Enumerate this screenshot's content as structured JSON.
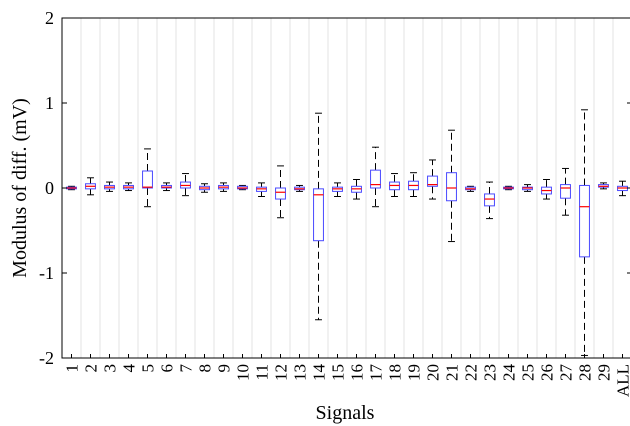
{
  "chart_data": {
    "type": "boxplot",
    "title": "",
    "xlabel": "Signals",
    "ylabel": "Modulus of diff. (mV)",
    "ylim": [
      -2,
      2
    ],
    "yticks": [
      -2,
      -1,
      0,
      1,
      2
    ],
    "grid": "vertical",
    "categories": [
      "1",
      "2",
      "3",
      "4",
      "5",
      "6",
      "7",
      "8",
      "9",
      "10",
      "11",
      "12",
      "13",
      "14",
      "15",
      "16",
      "17",
      "18",
      "19",
      "20",
      "21",
      "22",
      "23",
      "24",
      "25",
      "26",
      "27",
      "28",
      "29",
      "ALL"
    ],
    "boxes": [
      {
        "whisker_low": -0.02,
        "q1": -0.01,
        "median": 0.0,
        "q3": 0.01,
        "whisker_high": 0.02
      },
      {
        "whisker_low": -0.08,
        "q1": -0.01,
        "median": 0.02,
        "q3": 0.05,
        "whisker_high": 0.12
      },
      {
        "whisker_low": -0.04,
        "q1": -0.01,
        "median": 0.01,
        "q3": 0.03,
        "whisker_high": 0.07
      },
      {
        "whisker_low": -0.03,
        "q1": -0.01,
        "median": 0.01,
        "q3": 0.03,
        "whisker_high": 0.06
      },
      {
        "whisker_low": -0.22,
        "q1": 0.0,
        "median": 0.01,
        "q3": 0.2,
        "whisker_high": 0.46
      },
      {
        "whisker_low": -0.03,
        "q1": 0.0,
        "median": 0.01,
        "q3": 0.03,
        "whisker_high": 0.06
      },
      {
        "whisker_low": -0.09,
        "q1": 0.0,
        "median": 0.03,
        "q3": 0.07,
        "whisker_high": 0.17
      },
      {
        "whisker_low": -0.05,
        "q1": -0.02,
        "median": 0.0,
        "q3": 0.02,
        "whisker_high": 0.05
      },
      {
        "whisker_low": -0.04,
        "q1": -0.01,
        "median": 0.01,
        "q3": 0.03,
        "whisker_high": 0.06
      },
      {
        "whisker_low": -0.02,
        "q1": -0.01,
        "median": 0.0,
        "q3": 0.02,
        "whisker_high": 0.03
      },
      {
        "whisker_low": -0.1,
        "q1": -0.04,
        "median": -0.01,
        "q3": 0.01,
        "whisker_high": 0.06
      },
      {
        "whisker_low": -0.35,
        "q1": -0.13,
        "median": -0.05,
        "q3": 0.0,
        "whisker_high": 0.26
      },
      {
        "whisker_low": -0.04,
        "q1": -0.02,
        "median": -0.01,
        "q3": 0.01,
        "whisker_high": 0.03
      },
      {
        "whisker_low": -1.55,
        "q1": -0.62,
        "median": -0.08,
        "q3": -0.01,
        "whisker_high": 0.88
      },
      {
        "whisker_low": -0.1,
        "q1": -0.04,
        "median": -0.01,
        "q3": 0.01,
        "whisker_high": 0.06
      },
      {
        "whisker_low": -0.13,
        "q1": -0.05,
        "median": -0.01,
        "q3": 0.02,
        "whisker_high": 0.1
      },
      {
        "whisker_low": -0.22,
        "q1": 0.0,
        "median": 0.04,
        "q3": 0.21,
        "whisker_high": 0.48
      },
      {
        "whisker_low": -0.1,
        "q1": -0.02,
        "median": 0.03,
        "q3": 0.07,
        "whisker_high": 0.17
      },
      {
        "whisker_low": -0.1,
        "q1": -0.02,
        "median": 0.03,
        "q3": 0.08,
        "whisker_high": 0.18
      },
      {
        "whisker_low": -0.13,
        "q1": 0.02,
        "median": 0.04,
        "q3": 0.14,
        "whisker_high": 0.33
      },
      {
        "whisker_low": -0.63,
        "q1": -0.15,
        "median": 0.0,
        "q3": 0.18,
        "whisker_high": 0.68
      },
      {
        "whisker_low": -0.04,
        "q1": -0.02,
        "median": -0.01,
        "q3": 0.01,
        "whisker_high": 0.02
      },
      {
        "whisker_low": -0.36,
        "q1": -0.21,
        "median": -0.13,
        "q3": -0.07,
        "whisker_high": 0.07
      },
      {
        "whisker_low": -0.02,
        "q1": -0.01,
        "median": 0.0,
        "q3": 0.01,
        "whisker_high": 0.02
      },
      {
        "whisker_low": -0.04,
        "q1": -0.02,
        "median": 0.0,
        "q3": 0.01,
        "whisker_high": 0.04
      },
      {
        "whisker_low": -0.13,
        "q1": -0.07,
        "median": -0.03,
        "q3": 0.01,
        "whisker_high": 0.1
      },
      {
        "whisker_low": -0.32,
        "q1": -0.12,
        "median": 0.0,
        "q3": 0.04,
        "whisker_high": 0.23
      },
      {
        "whisker_low": -1.97,
        "q1": -0.81,
        "median": -0.22,
        "q3": 0.03,
        "whisker_high": 0.92
      },
      {
        "whisker_low": -0.01,
        "q1": 0.01,
        "median": 0.02,
        "q3": 0.04,
        "whisker_high": 0.06
      },
      {
        "whisker_low": -0.09,
        "q1": -0.03,
        "median": 0.0,
        "q3": 0.02,
        "whisker_high": 0.08
      }
    ],
    "colors": {
      "box": "#4a4aff",
      "median": "#ff0000",
      "whisker": "#000000",
      "grid": "#e3e3e3"
    }
  }
}
